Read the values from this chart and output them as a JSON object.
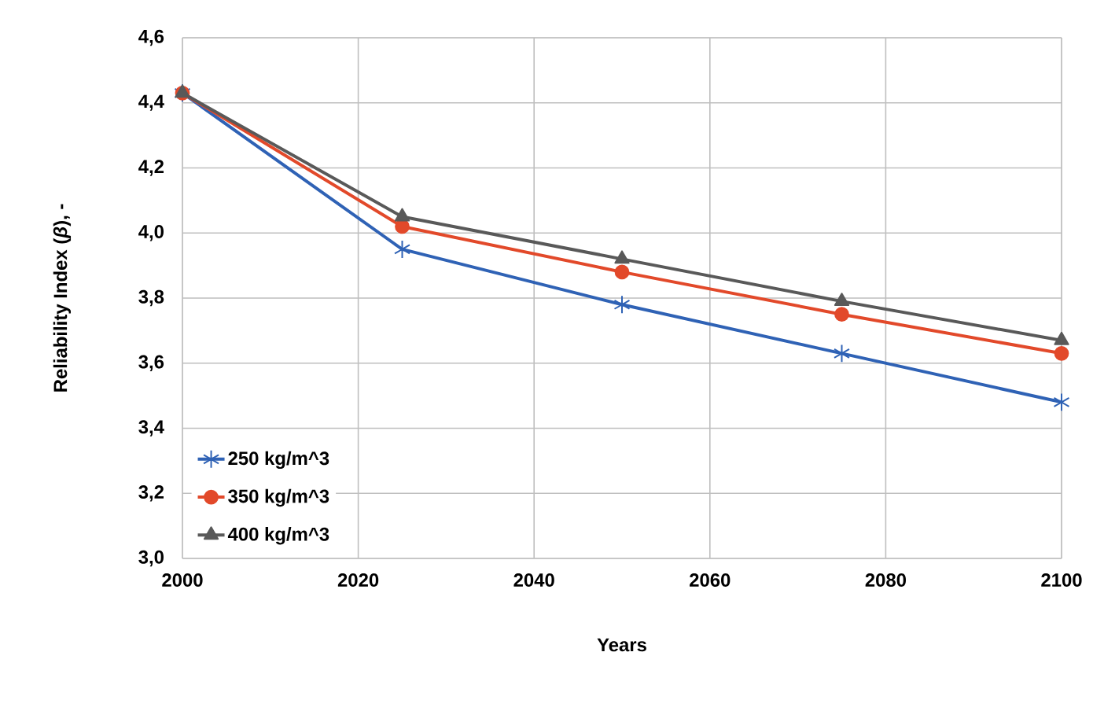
{
  "chart_data": {
    "type": "line",
    "xlabel": "Years",
    "ylabel": "Reliability Index (*β*), -",
    "x": [
      2000,
      2025,
      2050,
      2075,
      2100
    ],
    "series": [
      {
        "name": "250 kg/m^3",
        "color": "#2f62b5",
        "marker": "cross",
        "values": [
          4.43,
          3.95,
          3.78,
          3.63,
          3.48
        ]
      },
      {
        "name": "350 kg/m^3",
        "color": "#e2492a",
        "marker": "circle",
        "values": [
          4.43,
          4.02,
          3.88,
          3.75,
          3.63
        ]
      },
      {
        "name": "400 kg/m^3",
        "color": "#595959",
        "marker": "triangle",
        "values": [
          4.43,
          4.05,
          3.92,
          3.79,
          3.67
        ]
      }
    ],
    "xlim": [
      2000,
      2100
    ],
    "xticks": [
      2000,
      2020,
      2040,
      2060,
      2080,
      2100
    ],
    "ylim": [
      3.0,
      4.6
    ],
    "yticks": [
      {
        "value": 3.0,
        "label": "3,0"
      },
      {
        "value": 3.2,
        "label": "3,2"
      },
      {
        "value": 3.4,
        "label": "3,4"
      },
      {
        "value": 3.6,
        "label": "3,6"
      },
      {
        "value": 3.8,
        "label": "3,8"
      },
      {
        "value": 4.0,
        "label": "4,0"
      },
      {
        "value": 4.2,
        "label": "4,2"
      },
      {
        "value": 4.4,
        "label": "4,4"
      },
      {
        "value": 4.6,
        "label": "4,6"
      }
    ],
    "grid": true,
    "legend": "bottom left",
    "line_style": "solid"
  }
}
